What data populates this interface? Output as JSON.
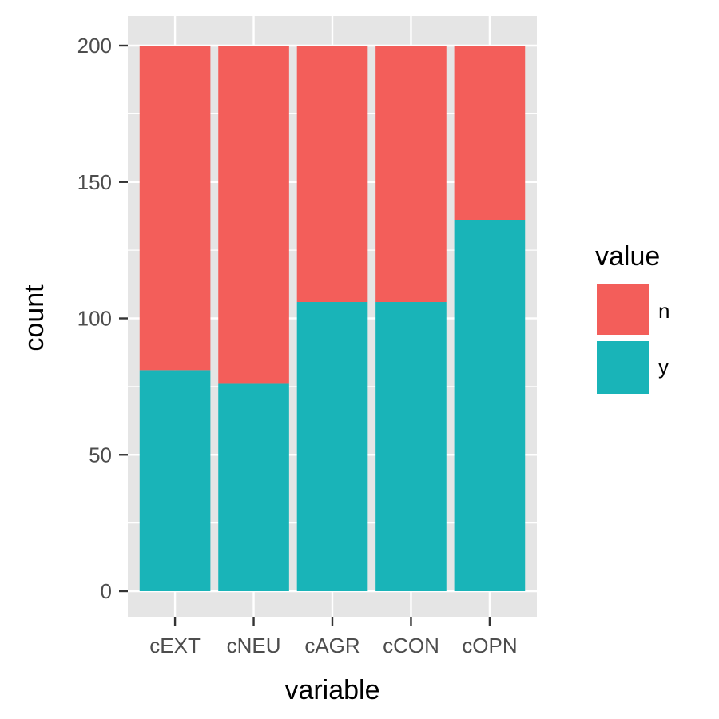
{
  "chart_data": {
    "type": "bar",
    "stacked": true,
    "categories": [
      "cEXT",
      "cNEU",
      "cAGR",
      "cCON",
      "cOPN"
    ],
    "series": [
      {
        "name": "n",
        "values": [
          119,
          124,
          94,
          94,
          64
        ]
      },
      {
        "name": "y",
        "values": [
          81,
          76,
          106,
          106,
          136
        ]
      }
    ],
    "colors": {
      "n": "#F35E5A",
      "y": "#19B4B8",
      "panel": "#E5E5E5",
      "grid": "#FFFFFF"
    },
    "xlabel": "variable",
    "ylabel": "count",
    "ylim": [
      0,
      200
    ],
    "yticks": [
      0,
      50,
      100,
      150,
      200
    ],
    "ytick_labels": [
      "0",
      "50",
      "100",
      "150",
      "200"
    ],
    "grid": true,
    "legend": {
      "title": "value",
      "placement": "right",
      "entries": [
        "n",
        "y"
      ]
    }
  }
}
